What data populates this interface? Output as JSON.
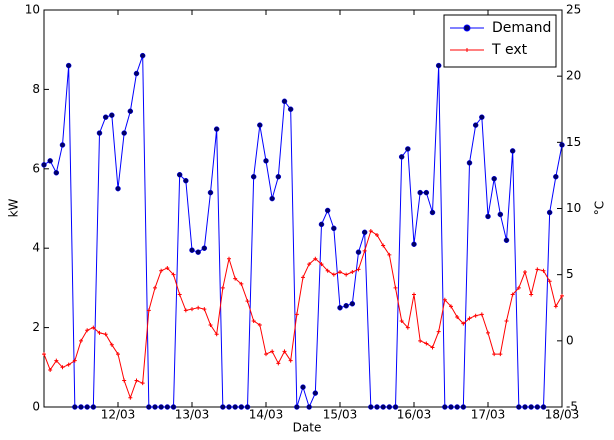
{
  "chart_data": {
    "type": "line",
    "x_label": "Date",
    "y_label": "kW",
    "y2_label": "°C",
    "x": [
      0,
      2,
      4,
      6,
      8,
      10,
      12,
      14,
      16,
      18,
      20,
      22,
      24,
      26,
      28,
      30,
      32,
      34,
      36,
      38,
      40,
      42,
      44,
      46,
      48,
      50,
      52,
      54,
      56,
      58,
      60,
      62,
      64,
      66,
      68,
      70,
      72,
      74,
      76,
      78,
      80,
      82,
      84,
      86,
      88,
      90,
      92,
      94,
      96,
      98,
      100,
      102,
      104,
      106,
      108,
      110,
      112,
      114,
      116,
      118,
      120,
      122,
      124,
      126,
      128,
      130,
      132,
      134,
      136,
      138,
      140,
      142,
      144,
      146,
      148,
      150,
      152,
      154,
      156,
      158,
      160,
      162,
      164,
      166,
      168
    ],
    "xlim": [
      0,
      168
    ],
    "xticks": [
      {
        "value": 24,
        "label": "12/03"
      },
      {
        "value": 48,
        "label": "13/03"
      },
      {
        "value": 72,
        "label": "14/03"
      },
      {
        "value": 96,
        "label": "15/03"
      },
      {
        "value": 120,
        "label": "16/03"
      },
      {
        "value": 144,
        "label": "17/03"
      },
      {
        "value": 168,
        "label": "18/03"
      }
    ],
    "ylim": [
      0,
      10
    ],
    "yticks": [
      0,
      2,
      4,
      6,
      8,
      10
    ],
    "y2lim": [
      -5,
      25
    ],
    "y2ticks": [
      -5,
      0,
      5,
      10,
      15,
      20,
      25
    ],
    "grid": false,
    "legend": "upper right",
    "series": [
      {
        "name": "Demand",
        "color": "#0000ff",
        "marker_color": "#000066",
        "values": [
          6.1,
          6.2,
          5.9,
          6.6,
          8.6,
          0,
          0,
          0,
          0,
          6.9,
          7.3,
          7.35,
          5.5,
          6.9,
          7.45,
          8.4,
          8.85,
          0,
          0,
          0,
          0,
          0,
          5.85,
          5.7,
          3.95,
          3.9,
          4.0,
          5.4,
          7.0,
          0,
          0,
          0,
          0,
          0,
          5.8,
          7.1,
          6.2,
          5.25,
          5.8,
          7.7,
          7.5,
          0,
          0.5,
          0,
          0.35,
          4.6,
          4.95,
          4.5,
          2.5,
          2.55,
          2.6,
          3.9,
          4.4,
          0,
          0,
          0,
          0,
          0,
          6.3,
          6.5,
          4.1,
          5.4,
          5.4,
          4.9,
          8.6,
          0,
          0,
          0,
          0,
          6.15,
          7.1,
          7.3,
          4.8,
          5.75,
          4.85,
          4.2,
          6.45,
          0,
          0,
          0,
          0,
          0,
          4.9,
          5.8,
          6.6
        ]
      },
      {
        "name": "T ext",
        "color": "#ff0000",
        "axis": "y2",
        "values": [
          -1.0,
          -2.2,
          -1.5,
          -2.0,
          -1.8,
          -1.5,
          0,
          0.8,
          1.0,
          0.6,
          0.5,
          -0.3,
          -1.0,
          -3.0,
          -4.3,
          -3.0,
          -3.2,
          2.3,
          4.0,
          5.3,
          5.5,
          5.0,
          3.5,
          2.3,
          2.4,
          2.5,
          2.4,
          1.2,
          0.5,
          4.0,
          6.2,
          4.7,
          4.3,
          3.0,
          1.5,
          1.2,
          -1.0,
          -0.8,
          -1.7,
          -0.8,
          -1.5,
          2.0,
          4.8,
          5.8,
          6.2,
          5.8,
          5.3,
          5.0,
          5.2,
          5.0,
          5.2,
          5.4,
          6.8,
          8.3,
          8.0,
          7.2,
          6.5,
          4.0,
          1.5,
          1.0,
          3.5,
          0,
          -0.2,
          -0.5,
          0.7,
          3.1,
          2.6,
          1.8,
          1.3,
          1.7,
          1.9,
          2.0,
          0.6,
          -1.0,
          -1.0,
          1.5,
          3.5,
          4.0,
          5.2,
          3.5,
          5.4,
          5.3,
          4.5,
          2.6,
          3.4
        ]
      }
    ]
  }
}
